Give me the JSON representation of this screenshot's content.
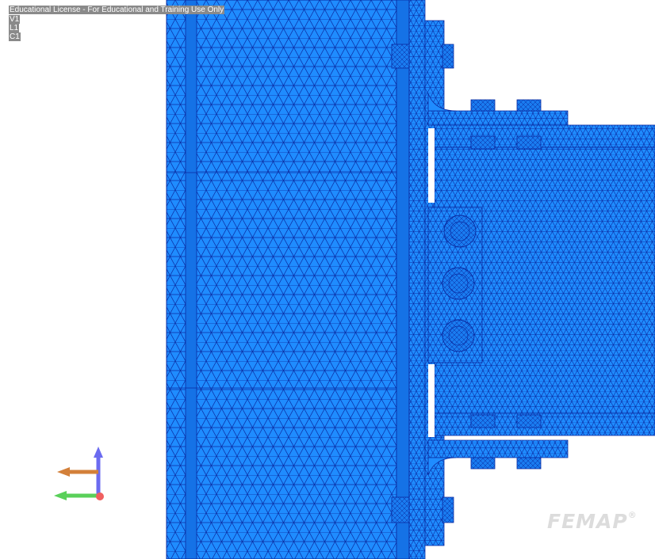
{
  "overlay": {
    "license": "Educational License - For Educational and Training Use Only",
    "view": "V1",
    "layer": "L1",
    "csys": "C1"
  },
  "brand": {
    "name": "FEMAP",
    "mark": "®"
  },
  "colors": {
    "background": "#ffffff",
    "mesh_fill": "#1f8cff",
    "mesh_fill_dark": "#1572e6",
    "mesh_edge": "#0a2aa0",
    "axis_x": "#d3803a",
    "axis_y": "#6b6bf0",
    "axis_z": "#5ad05a",
    "origin": "#f06060"
  },
  "icons": {
    "triad": "coordinate-axes-icon"
  }
}
